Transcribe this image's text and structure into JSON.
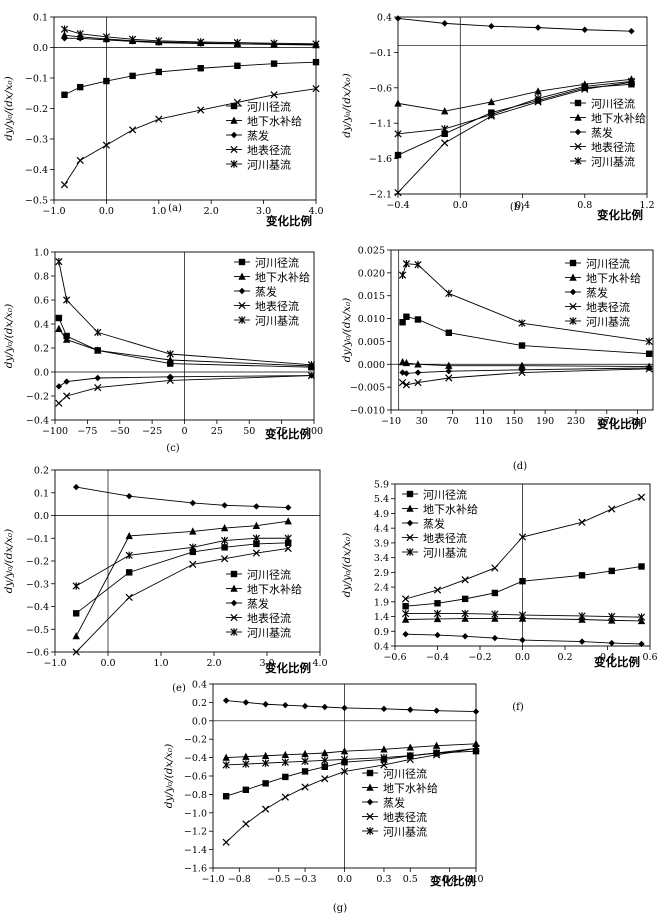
{
  "figure": {
    "common_ylabel": "dy/y₀/(dx/x₀)",
    "common_xlabel": "变化比例"
  },
  "chart_data": [
    {
      "panel": "(a)",
      "type": "line",
      "xlabel": "变化比例",
      "ylabel": "dy/y₀/(dx/x₀)",
      "xlim": [
        -1.0,
        4.0
      ],
      "ylim": [
        -0.5,
        0.1
      ],
      "xticks": [
        -1.0,
        0.0,
        1.0,
        2.0,
        3.0,
        4.0
      ],
      "xtick_labels": [
        "−1.0",
        "0.0",
        "1.0",
        "2.0",
        "3.0",
        "4.0"
      ],
      "yticks": [
        -0.5,
        -0.4,
        -0.3,
        -0.2,
        -0.1,
        0.0,
        0.1
      ],
      "ytick_labels": [
        "−0.5",
        "−0.4",
        "−0.3",
        "−0.2",
        "−0.1",
        "0.0",
        "0.1"
      ],
      "legend_position": "lower-right",
      "x": [
        -0.8,
        -0.5,
        0.0,
        0.5,
        1.0,
        1.8,
        2.5,
        3.2,
        4.0
      ],
      "series": [
        {
          "name": "河川径流",
          "marker": "square",
          "values": [
            -0.155,
            -0.13,
            -0.11,
            -0.093,
            -0.08,
            -0.068,
            -0.06,
            -0.053,
            -0.048
          ]
        },
        {
          "name": "地下水补给",
          "marker": "triangle",
          "values": [
            0.04,
            0.035,
            0.028,
            0.022,
            0.018,
            0.015,
            0.012,
            0.01,
            0.008
          ]
        },
        {
          "name": "蒸发",
          "marker": "diamond",
          "values": [
            0.03,
            0.03,
            0.025,
            0.02,
            0.016,
            0.013,
            0.012,
            0.011,
            0.01
          ]
        },
        {
          "name": "地表径流",
          "marker": "x",
          "values": [
            -0.45,
            -0.37,
            -0.32,
            -0.27,
            -0.235,
            -0.205,
            -0.18,
            -0.155,
            -0.135
          ]
        },
        {
          "name": "河川基流",
          "marker": "star",
          "values": [
            0.06,
            0.045,
            0.035,
            0.027,
            0.022,
            0.018,
            0.016,
            0.014,
            0.012
          ]
        }
      ]
    },
    {
      "panel": "(b)",
      "type": "line",
      "xlabel": "变化比例",
      "ylabel": "dy/y₀/(dx/x₀)",
      "xlim": [
        -0.4,
        1.2
      ],
      "ylim": [
        -2.1,
        0.4
      ],
      "xticks": [
        -0.4,
        0.0,
        0.4,
        0.8,
        1.2
      ],
      "xtick_labels": [
        "−0.4",
        "0.0",
        "0.4",
        "0.8",
        "1.2"
      ],
      "yticks": [
        -2.1,
        -1.6,
        -1.1,
        -0.6,
        -0.1,
        0.4
      ],
      "ytick_labels": [
        "−2.1",
        "−1.6",
        "−1.1",
        "−0.6",
        "−0.1",
        "0.4"
      ],
      "legend_position": "right",
      "x": [
        -0.4,
        -0.1,
        0.2,
        0.5,
        0.8,
        1.1
      ],
      "series": [
        {
          "name": "河川径流",
          "marker": "square",
          "values": [
            -1.55,
            -1.25,
            -0.95,
            -0.78,
            -0.6,
            -0.55
          ]
        },
        {
          "name": "地下水补给",
          "marker": "triangle",
          "values": [
            -0.82,
            -0.93,
            -0.8,
            -0.65,
            -0.55,
            -0.48
          ]
        },
        {
          "name": "蒸发",
          "marker": "diamond",
          "values": [
            0.38,
            0.31,
            0.27,
            0.25,
            0.22,
            0.2
          ]
        },
        {
          "name": "地表径流",
          "marker": "x",
          "values": [
            -2.08,
            -1.38,
            -1.0,
            -0.8,
            -0.62,
            -0.52
          ]
        },
        {
          "name": "河川基流",
          "marker": "star",
          "values": [
            -1.25,
            -1.18,
            -0.98,
            -0.75,
            -0.58,
            -0.51
          ]
        }
      ]
    },
    {
      "panel": "(c)",
      "type": "line",
      "xlabel": "变化比例",
      "ylabel": "dy/y₀/(dx/x₀)",
      "xlim": [
        -100,
        100
      ],
      "ylim": [
        -0.4,
        1.0
      ],
      "xticks": [
        -100,
        -75,
        -50,
        -25,
        0,
        25,
        50,
        75,
        100
      ],
      "xtick_labels": [
        "−100",
        "−75",
        "−50",
        "−25",
        "0",
        "25",
        "50",
        "75",
        "100"
      ],
      "yticks": [
        -0.4,
        -0.2,
        0.0,
        0.2,
        0.4,
        0.6,
        0.8,
        1.0
      ],
      "ytick_labels": [
        "−0.4",
        "−0.2",
        "0.0",
        "0.2",
        "0.4",
        "0.6",
        "0.8",
        "1.0"
      ],
      "legend_position": "top-right",
      "x": [
        -97,
        -91,
        -67,
        -11,
        98
      ],
      "series": [
        {
          "name": "河川径流",
          "marker": "square",
          "values": [
            0.45,
            0.3,
            0.18,
            0.07,
            0.04
          ]
        },
        {
          "name": "地下水补给",
          "marker": "triangle",
          "values": [
            0.36,
            0.27,
            0.18,
            0.1,
            0.05
          ]
        },
        {
          "name": "蒸发",
          "marker": "diamond",
          "values": [
            -0.12,
            -0.08,
            -0.05,
            -0.04,
            -0.03
          ]
        },
        {
          "name": "地表径流",
          "marker": "x",
          "values": [
            -0.26,
            -0.2,
            -0.13,
            -0.07,
            -0.03
          ]
        },
        {
          "name": "河川基流",
          "marker": "star",
          "values": [
            0.92,
            0.6,
            0.33,
            0.15,
            0.06
          ]
        }
      ]
    },
    {
      "panel": "(d)",
      "type": "line",
      "xlabel": "变化比例",
      "ylabel": "dy/y₀/(dx/x₀)",
      "xlim": [
        -10,
        330
      ],
      "ylim": [
        -0.01,
        0.025
      ],
      "xticks": [
        -10,
        30,
        70,
        110,
        150,
        190,
        230,
        270,
        310
      ],
      "xtick_labels": [
        "−10",
        "30",
        "70",
        "110",
        "150",
        "190",
        "230",
        "270",
        "310"
      ],
      "yticks": [
        -0.01,
        -0.005,
        0.0,
        0.005,
        0.01,
        0.015,
        0.02,
        0.025
      ],
      "ytick_labels": [
        "−0.010",
        "−0.005",
        "0.000",
        "0.005",
        "0.010",
        "0.015",
        "0.020",
        "0.025"
      ],
      "legend_position": "top-right",
      "x": [
        5,
        10,
        25,
        65,
        160,
        325
      ],
      "series": [
        {
          "name": "河川径流",
          "marker": "square",
          "values": [
            0.0092,
            0.0104,
            0.0098,
            0.0069,
            0.0041,
            0.0023
          ]
        },
        {
          "name": "地下水补给",
          "marker": "triangle",
          "values": [
            0.0005,
            0.0003,
            0.0,
            -0.0003,
            -0.0003,
            -0.0005
          ]
        },
        {
          "name": "蒸发",
          "marker": "diamond",
          "values": [
            -0.0018,
            -0.002,
            -0.0018,
            -0.0015,
            -0.0012,
            -0.0008
          ]
        },
        {
          "name": "地表径流",
          "marker": "x",
          "values": [
            -0.004,
            -0.0045,
            -0.004,
            -0.003,
            -0.0018,
            -0.001
          ]
        },
        {
          "name": "河川基流",
          "marker": "star",
          "values": [
            0.0195,
            0.022,
            0.0218,
            0.0155,
            0.009,
            0.005
          ]
        }
      ]
    },
    {
      "panel": "(e)",
      "type": "line",
      "xlabel": "变化比例",
      "ylabel": "dy/y₀/(dx/x₀)",
      "xlim": [
        -1.0,
        4.0
      ],
      "ylim": [
        -0.6,
        0.2
      ],
      "xticks": [
        -1.0,
        0.0,
        1.0,
        2.0,
        3.0,
        4.0
      ],
      "xtick_labels": [
        "−1.0",
        "0.0",
        "1.0",
        "2.0",
        "3.0",
        "4.0"
      ],
      "yticks": [
        -0.6,
        -0.5,
        -0.4,
        -0.3,
        -0.2,
        -0.1,
        0.0,
        0.1,
        0.2
      ],
      "ytick_labels": [
        "−0.6",
        "−0.5",
        "−0.4",
        "−0.3",
        "−0.2",
        "−0.1",
        "0.0",
        "0.1",
        "0.2"
      ],
      "legend_position": "lower-right",
      "x": [
        -0.6,
        0.4,
        1.6,
        2.2,
        2.8,
        3.4
      ],
      "series": [
        {
          "name": "河川径流",
          "marker": "square",
          "values": [
            -0.43,
            -0.25,
            -0.16,
            -0.14,
            -0.125,
            -0.12
          ]
        },
        {
          "name": "地下水补给",
          "marker": "triangle",
          "values": [
            -0.53,
            -0.09,
            -0.07,
            -0.055,
            -0.045,
            -0.025
          ]
        },
        {
          "name": "蒸发",
          "marker": "diamond",
          "values": [
            0.125,
            0.085,
            0.055,
            0.045,
            0.04,
            0.035
          ]
        },
        {
          "name": "地表径流",
          "marker": "x",
          "values": [
            -0.6,
            -0.36,
            -0.215,
            -0.19,
            -0.165,
            -0.145
          ]
        },
        {
          "name": "河川基流",
          "marker": "star",
          "values": [
            -0.31,
            -0.175,
            -0.14,
            -0.11,
            -0.1,
            -0.1
          ]
        }
      ]
    },
    {
      "panel": "(f)",
      "type": "line",
      "xlabel": "变化比例",
      "ylabel": "dy/y₀/(dx/x₀)",
      "xlim": [
        -0.6,
        0.6
      ],
      "ylim": [
        0.4,
        5.9
      ],
      "xticks": [
        -0.6,
        -0.4,
        -0.2,
        0.0,
        0.2,
        0.4,
        0.6
      ],
      "xtick_labels": [
        "−0.6",
        "−0.4",
        "−0.2",
        "0.0",
        "0.2",
        "0.4",
        "0.6"
      ],
      "yticks": [
        0.4,
        0.9,
        1.4,
        1.9,
        2.4,
        2.9,
        3.4,
        3.9,
        4.4,
        4.9,
        5.4,
        5.9
      ],
      "ytick_labels": [
        "0.4",
        "0.9",
        "1.4",
        "1.9",
        "2.4",
        "2.9",
        "3.4",
        "3.9",
        "4.4",
        "4.9",
        "5.4",
        "5.9"
      ],
      "legend_position": "top-left",
      "x": [
        -0.55,
        -0.4,
        -0.27,
        -0.13,
        0.0,
        0.28,
        0.42,
        0.56
      ],
      "series": [
        {
          "name": "河川径流",
          "marker": "square",
          "values": [
            1.75,
            1.85,
            2.0,
            2.2,
            2.6,
            2.8,
            2.95,
            3.1
          ]
        },
        {
          "name": "地下水补给",
          "marker": "triangle",
          "values": [
            1.3,
            1.32,
            1.33,
            1.33,
            1.33,
            1.3,
            1.27,
            1.25
          ]
        },
        {
          "name": "蒸发",
          "marker": "diamond",
          "values": [
            0.8,
            0.77,
            0.73,
            0.67,
            0.6,
            0.55,
            0.5,
            0.47
          ]
        },
        {
          "name": "地表径流",
          "marker": "x",
          "values": [
            2.0,
            2.3,
            2.65,
            3.05,
            4.1,
            4.6,
            5.05,
            5.45
          ]
        },
        {
          "name": "河川基流",
          "marker": "star",
          "values": [
            1.5,
            1.5,
            1.5,
            1.48,
            1.45,
            1.42,
            1.4,
            1.38
          ]
        }
      ]
    },
    {
      "panel": "(g)",
      "type": "line",
      "xlabel": "变化比例",
      "ylabel": "dy/y₀/(dx/x₀)",
      "xlim": [
        -1.0,
        1.0
      ],
      "ylim": [
        -1.6,
        0.4
      ],
      "xticks": [
        -1.0,
        -0.8,
        -0.5,
        -0.3,
        0.0,
        0.3,
        0.5,
        0.8,
        1.0
      ],
      "xtick_labels": [
        "−1.0",
        "−0.8",
        "−0.5",
        "−0.3",
        "0.0",
        "0.3",
        "0.5",
        "0.8",
        "1.0"
      ],
      "yticks": [
        -1.6,
        -1.4,
        -1.2,
        -1.0,
        -0.8,
        -0.6,
        -0.4,
        -0.2,
        0.0,
        0.2,
        0.4
      ],
      "ytick_labels": [
        "−1.6",
        "−1.4",
        "−1.2",
        "−1.0",
        "−0.8",
        "−0.6",
        "−0.4",
        "−0.2",
        "0.0",
        "0.2",
        "0.4"
      ],
      "legend_position": "lower-right",
      "x": [
        -0.9,
        -0.75,
        -0.6,
        -0.45,
        -0.3,
        -0.15,
        0.0,
        0.3,
        0.5,
        0.7,
        1.0
      ],
      "series": [
        {
          "name": "河川径流",
          "marker": "square",
          "values": [
            -0.82,
            -0.75,
            -0.68,
            -0.61,
            -0.55,
            -0.5,
            -0.45,
            -0.42,
            -0.38,
            -0.35,
            -0.33
          ]
        },
        {
          "name": "地下水补给",
          "marker": "triangle",
          "values": [
            -0.4,
            -0.39,
            -0.38,
            -0.37,
            -0.36,
            -0.35,
            -0.33,
            -0.31,
            -0.29,
            -0.27,
            -0.25
          ]
        },
        {
          "name": "蒸发",
          "marker": "diamond",
          "values": [
            0.22,
            0.2,
            0.18,
            0.17,
            0.16,
            0.15,
            0.14,
            0.13,
            0.12,
            0.11,
            0.1
          ]
        },
        {
          "name": "地表径流",
          "marker": "x",
          "values": [
            -1.32,
            -1.12,
            -0.96,
            -0.83,
            -0.72,
            -0.63,
            -0.55,
            -0.48,
            -0.42,
            -0.37,
            -0.3
          ]
        },
        {
          "name": "河川基流",
          "marker": "star",
          "values": [
            -0.48,
            -0.47,
            -0.46,
            -0.45,
            -0.44,
            -0.43,
            -0.42,
            -0.4,
            -0.38,
            -0.35,
            -0.3
          ]
        }
      ]
    }
  ]
}
